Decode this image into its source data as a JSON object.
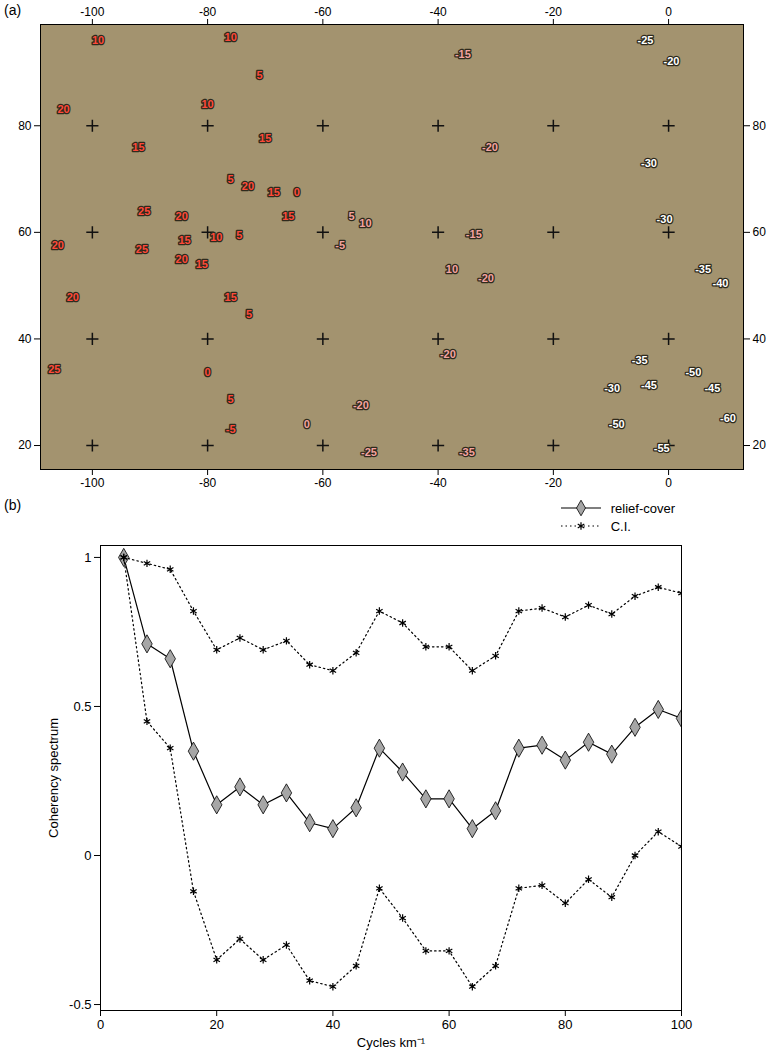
{
  "chart_data": [
    {
      "type": "map",
      "panel_label": "(a)",
      "xlim": [
        -109,
        13
      ],
      "ylim": [
        15.5,
        99
      ],
      "xticks": [
        -100,
        -80,
        -60,
        -40,
        -20,
        0
      ],
      "yticks": [
        20,
        40,
        60,
        80
      ],
      "grid": true,
      "contour_labels": [
        {
          "color": "#ff4a3a",
          "labels": [
            [
              -99,
              96,
              10
            ],
            [
              -76,
              96.5,
              10
            ],
            [
              -71,
              89.5,
              5
            ],
            [
              -80,
              84,
              10
            ],
            [
              -105,
              83,
              20
            ],
            [
              -92,
              76,
              15
            ],
            [
              -70,
              77.7,
              15
            ],
            [
              -73,
              68.7,
              20
            ],
            [
              -76,
              70,
              5
            ],
            [
              -68.5,
              67.5,
              15
            ],
            [
              -66,
              63,
              15
            ],
            [
              -64.5,
              67.5,
              0
            ],
            [
              -91,
              64,
              25
            ],
            [
              -84.5,
              63,
              20
            ],
            [
              -78.5,
              59,
              10
            ],
            [
              -74.5,
              59.4,
              5
            ],
            [
              -84,
              58.5,
              15
            ],
            [
              -91.4,
              56.7,
              25
            ],
            [
              -84.5,
              55,
              20
            ],
            [
              -81,
              54,
              15
            ],
            [
              -106,
              57.6,
              20
            ],
            [
              -103.4,
              47.7,
              20
            ],
            [
              -76,
              47.7,
              15
            ],
            [
              -72.8,
              44.5,
              5
            ],
            [
              -106.6,
              34.3,
              25
            ],
            [
              -80,
              33.8,
              0
            ],
            [
              -76,
              28.7,
              5
            ],
            [
              -76,
              23,
              -5
            ]
          ]
        },
        {
          "color": "#f4a3a0",
          "labels": [
            [
              -35.7,
              93.4,
              -15
            ],
            [
              -57,
              57.6,
              -5
            ],
            [
              -55,
              63,
              5
            ],
            [
              -52.6,
              61.7,
              10
            ],
            [
              -31,
              76,
              -20
            ],
            [
              -33.8,
              59.6,
              -15
            ],
            [
              -31.7,
              51.3,
              -20
            ],
            [
              -37.6,
              53,
              10
            ],
            [
              -38.3,
              37,
              -20
            ],
            [
              -62.8,
              23.9,
              0
            ],
            [
              -53.4,
              27.5,
              -20
            ],
            [
              -52,
              18.7,
              -25
            ],
            [
              -35,
              18.7,
              -35
            ]
          ]
        },
        {
          "color": "#ffffff",
          "labels": [
            [
              -4,
              96,
              -25
            ],
            [
              0.5,
              92,
              -20
            ],
            [
              -3.4,
              73,
              -30
            ],
            [
              -0.7,
              62.4,
              -30
            ],
            [
              6,
              53,
              -35
            ],
            [
              9,
              50.4,
              -40
            ],
            [
              -5,
              36,
              -35
            ],
            [
              -9.8,
              30.7,
              -30
            ],
            [
              -3.4,
              31.3,
              -45
            ],
            [
              4.3,
              33.8,
              -50
            ],
            [
              7.6,
              30.7,
              -45
            ],
            [
              -9,
              24,
              -50
            ],
            [
              -1.2,
              19.4,
              -55
            ],
            [
              10.3,
              25,
              -60
            ]
          ]
        }
      ]
    },
    {
      "type": "line",
      "panel_label": "(b)",
      "x_label": "Cycles km⁻¹",
      "y_label": "Coherency spectrum",
      "xlim": [
        0,
        100
      ],
      "ylim": [
        -0.52,
        1.04
      ],
      "xticks": [
        0,
        20,
        40,
        60,
        80,
        100
      ],
      "yticks": [
        -0.5,
        0,
        0.5,
        1
      ],
      "legend": "top-right",
      "x": [
        4,
        8,
        12,
        16,
        20,
        24,
        28,
        32,
        36,
        40,
        44,
        48,
        52,
        56,
        60,
        64,
        68,
        72,
        76,
        80,
        84,
        88,
        92,
        96,
        100
      ],
      "series": [
        {
          "name": "relief-cover",
          "color": "#000000",
          "marker": "diamond",
          "line_style": "solid",
          "values": [
            1,
            0.71,
            0.66,
            0.35,
            0.17,
            0.23,
            0.17,
            0.21,
            0.11,
            0.09,
            0.16,
            0.36,
            0.28,
            0.19,
            0.19,
            0.09,
            0.15,
            0.36,
            0.37,
            0.32,
            0.38,
            0.34,
            0.43,
            0.49,
            0.46
          ]
        },
        {
          "name": "C.I.",
          "color": "#000000",
          "marker": "asterisk",
          "line_style": "dotted",
          "upper": [
            1,
            0.98,
            0.96,
            0.82,
            0.69,
            0.73,
            0.69,
            0.72,
            0.64,
            0.62,
            0.68,
            0.82,
            0.78,
            0.7,
            0.7,
            0.62,
            0.67,
            0.82,
            0.83,
            0.8,
            0.84,
            0.81,
            0.87,
            0.9,
            0.88
          ],
          "lower": [
            1,
            0.45,
            0.36,
            -0.12,
            -0.35,
            -0.28,
            -0.35,
            -0.3,
            -0.42,
            -0.44,
            -0.37,
            -0.11,
            -0.21,
            -0.32,
            -0.32,
            -0.44,
            -0.37,
            -0.11,
            -0.1,
            -0.16,
            -0.08,
            -0.14,
            0.0,
            0.08,
            0.03
          ]
        }
      ]
    }
  ]
}
